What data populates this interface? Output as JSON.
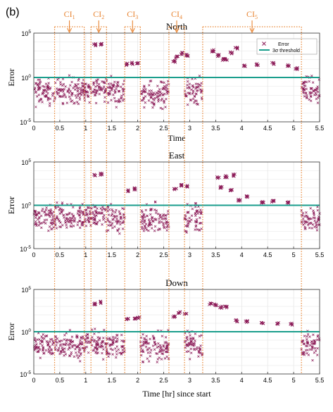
{
  "panel_label": "(b)",
  "colors": {
    "error_marker": "#8B1A57",
    "threshold_line": "#1A9E8C",
    "interval_marker": "#E88533",
    "grid": "#e4e4e4",
    "axis": "#333333"
  },
  "chart_data": [
    {
      "type": "scatter",
      "title": "North",
      "xlabel": "Time",
      "ylabel": "Error",
      "yscale": "log",
      "xlim": [
        0,
        5.5
      ],
      "ylim": [
        1e-05,
        100000.0
      ],
      "xticks": [
        "0",
        "0.5",
        "1",
        "1.5",
        "2",
        "2.5",
        "3",
        "3.5",
        "4",
        "4.5",
        "5",
        "5.5"
      ],
      "yticks": [
        {
          "base": "10",
          "exp": "-5"
        },
        {
          "base": "10",
          "exp": "0"
        },
        {
          "base": "10",
          "exp": "5"
        }
      ],
      "grid": true,
      "legend_position": "top-right",
      "legend": [
        "Error",
        "3σ threshold"
      ],
      "threshold": 1.0,
      "series": [
        {
          "name": "Error",
          "segments": [
            {
              "x0": 0.0,
              "x1": 0.4,
              "logmid": -1.7,
              "spread": 1.6
            },
            {
              "x0": 0.4,
              "x1": 0.97,
              "logmid": -1.5,
              "spread": 1.6
            },
            {
              "x0": 0.97,
              "x1": 1.4,
              "logmid": -1.3,
              "spread": 1.4
            },
            {
              "x0": 1.4,
              "x1": 1.75,
              "logmid": -1.5,
              "spread": 1.6
            },
            {
              "x0": 2.05,
              "x1": 2.6,
              "logmid": -1.8,
              "spread": 1.6
            },
            {
              "x0": 2.9,
              "x1": 3.25,
              "logmid": -1.5,
              "spread": 1.6
            },
            {
              "x0": 5.15,
              "x1": 5.5,
              "logmid": -1.4,
              "spread": 1.5
            }
          ]
        },
        {
          "name": "Error (elevated)",
          "points": [
            {
              "x": 1.17,
              "y": 5000
            },
            {
              "x": 1.3,
              "y": 5000
            },
            {
              "x": 1.8,
              "y": 30
            },
            {
              "x": 1.9,
              "y": 40
            },
            {
              "x": 2.0,
              "y": 35
            },
            {
              "x": 2.7,
              "y": 60
            },
            {
              "x": 2.75,
              "y": 200
            },
            {
              "x": 2.85,
              "y": 500
            },
            {
              "x": 2.95,
              "y": 300
            },
            {
              "x": 3.45,
              "y": 1000
            },
            {
              "x": 3.55,
              "y": 300
            },
            {
              "x": 3.65,
              "y": 100
            },
            {
              "x": 3.8,
              "y": 600
            },
            {
              "x": 3.9,
              "y": 2000
            },
            {
              "x": 3.7,
              "y": 100
            },
            {
              "x": 4.05,
              "y": 20
            },
            {
              "x": 4.3,
              "y": 30
            },
            {
              "x": 4.6,
              "y": 40
            },
            {
              "x": 4.9,
              "y": 25
            },
            {
              "x": 5.05,
              "y": 10
            }
          ]
        }
      ]
    },
    {
      "type": "scatter",
      "title": "East",
      "xlabel": "",
      "ylabel": "Error",
      "yscale": "log",
      "xlim": [
        0,
        5.5
      ],
      "ylim": [
        1e-05,
        100000.0
      ],
      "xticks": [
        "0",
        "0.5",
        "1",
        "1.5",
        "2",
        "2.5",
        "3",
        "3.5",
        "4",
        "4.5",
        "5",
        "5.5"
      ],
      "yticks": [
        {
          "base": "10",
          "exp": "-5"
        },
        {
          "base": "10",
          "exp": "0"
        },
        {
          "base": "10",
          "exp": "5"
        }
      ],
      "grid": true,
      "threshold": 1.0,
      "series": [
        {
          "name": "Error",
          "segments": [
            {
              "x0": 0.0,
              "x1": 0.4,
              "logmid": -1.6,
              "spread": 1.6
            },
            {
              "x0": 0.4,
              "x1": 0.97,
              "logmid": -1.5,
              "spread": 1.8
            },
            {
              "x0": 0.97,
              "x1": 1.4,
              "logmid": -1.2,
              "spread": 1.4
            },
            {
              "x0": 1.4,
              "x1": 1.75,
              "logmid": -1.6,
              "spread": 1.8
            },
            {
              "x0": 2.05,
              "x1": 2.6,
              "logmid": -1.7,
              "spread": 1.8
            },
            {
              "x0": 2.9,
              "x1": 3.25,
              "logmid": -1.5,
              "spread": 1.7
            },
            {
              "x0": 5.15,
              "x1": 5.5,
              "logmid": -1.5,
              "spread": 1.6
            }
          ]
        },
        {
          "name": "Error (elevated)",
          "points": [
            {
              "x": 1.17,
              "y": 3000
            },
            {
              "x": 1.3,
              "y": 4000
            },
            {
              "x": 1.8,
              "y": 50
            },
            {
              "x": 1.95,
              "y": 80
            },
            {
              "x": 2.72,
              "y": 80
            },
            {
              "x": 2.85,
              "y": 200
            },
            {
              "x": 2.95,
              "y": 150
            },
            {
              "x": 3.55,
              "y": 1500
            },
            {
              "x": 3.7,
              "y": 2000
            },
            {
              "x": 3.85,
              "y": 3000
            },
            {
              "x": 3.6,
              "y": 120
            },
            {
              "x": 3.8,
              "y": 60
            },
            {
              "x": 3.95,
              "y": 4
            },
            {
              "x": 4.1,
              "y": 10
            },
            {
              "x": 4.4,
              "y": 2
            },
            {
              "x": 4.6,
              "y": 3
            },
            {
              "x": 4.9,
              "y": 2
            }
          ]
        }
      ]
    },
    {
      "type": "scatter",
      "title": "Down",
      "xlabel": "Time [hr] since start",
      "ylabel": "Error",
      "yscale": "log",
      "xlim": [
        0,
        5.5
      ],
      "ylim": [
        1e-05,
        100000.0
      ],
      "xticks": [
        "0",
        "0.5",
        "1",
        "1.5",
        "2",
        "2.5",
        "3",
        "3.5",
        "4",
        "4.5",
        "5",
        "5.5"
      ],
      "yticks": [
        {
          "base": "10",
          "exp": "-5"
        },
        {
          "base": "10",
          "exp": "0"
        },
        {
          "base": "10",
          "exp": "5"
        }
      ],
      "grid": true,
      "threshold": 1.0,
      "series": [
        {
          "name": "Error",
          "segments": [
            {
              "x0": 0.0,
              "x1": 0.4,
              "logmid": -1.7,
              "spread": 1.6
            },
            {
              "x0": 0.4,
              "x1": 0.97,
              "logmid": -1.6,
              "spread": 1.8
            },
            {
              "x0": 0.97,
              "x1": 1.4,
              "logmid": -1.4,
              "spread": 1.6
            },
            {
              "x0": 1.4,
              "x1": 1.75,
              "logmid": -1.6,
              "spread": 1.7
            },
            {
              "x0": 2.05,
              "x1": 2.6,
              "logmid": -1.8,
              "spread": 1.8
            },
            {
              "x0": 2.9,
              "x1": 3.25,
              "logmid": -1.6,
              "spread": 1.7
            },
            {
              "x0": 5.15,
              "x1": 5.5,
              "logmid": -1.5,
              "spread": 1.6
            }
          ]
        },
        {
          "name": "Error (elevated)",
          "points": [
            {
              "x": 1.17,
              "y": 2000
            },
            {
              "x": 1.3,
              "y": 3000
            },
            {
              "x": 1.8,
              "y": 30
            },
            {
              "x": 1.95,
              "y": 40
            },
            {
              "x": 2.02,
              "y": 50
            },
            {
              "x": 2.7,
              "y": 60
            },
            {
              "x": 2.8,
              "y": 200
            },
            {
              "x": 2.92,
              "y": 150
            },
            {
              "x": 3.4,
              "y": 2000
            },
            {
              "x": 3.5,
              "y": 1500
            },
            {
              "x": 3.6,
              "y": 800
            },
            {
              "x": 3.7,
              "y": 800
            },
            {
              "x": 3.9,
              "y": 20
            },
            {
              "x": 4.1,
              "y": 15
            },
            {
              "x": 4.4,
              "y": 12
            },
            {
              "x": 4.7,
              "y": 10
            },
            {
              "x": 4.95,
              "y": 8
            }
          ]
        }
      ]
    }
  ],
  "intervals": [
    {
      "label": "CI",
      "sub": "1",
      "x0": 0.4,
      "x1": 0.97
    },
    {
      "label": "CI",
      "sub": "2",
      "x0": 1.1,
      "x1": 1.4
    },
    {
      "label": "CI",
      "sub": "3",
      "x0": 1.75,
      "x1": 2.05
    },
    {
      "label": "CI",
      "sub": "4",
      "x0": 2.6,
      "x1": 2.9
    },
    {
      "label": "CI",
      "sub": "5",
      "x0": 3.25,
      "x1": 5.15
    }
  ]
}
